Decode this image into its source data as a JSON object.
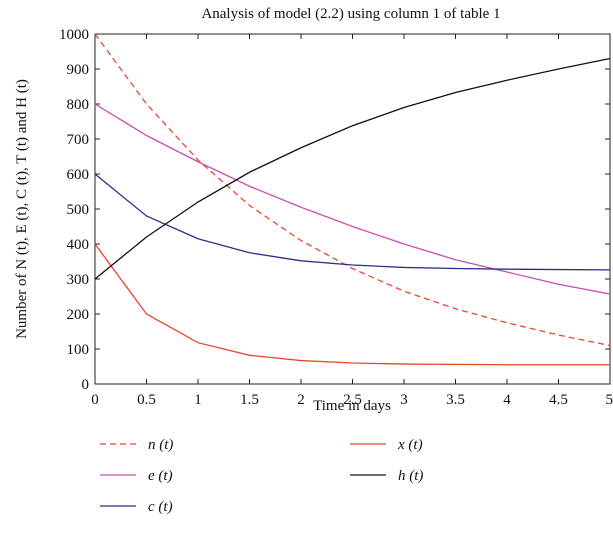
{
  "chart_data": {
    "type": "line",
    "title": "Analysis of model (2.2) using column 1 of table 1",
    "xlabel": "Time in days",
    "ylabel": "Number of N (t), E (t), C (t), T (t) and H (t)",
    "xlim": [
      0,
      5
    ],
    "ylim": [
      0,
      1000
    ],
    "xticks": [
      "0",
      "0.5",
      "1",
      "1.5",
      "2",
      "2.5",
      "3",
      "3.5",
      "4",
      "4.5",
      "5"
    ],
    "yticks": [
      "0",
      "100",
      "200",
      "300",
      "400",
      "500",
      "600",
      "700",
      "800",
      "900",
      "1000"
    ],
    "grid": false,
    "legend_position": "bottom",
    "x": [
      0,
      0.5,
      1,
      1.5,
      2,
      2.5,
      3,
      3.5,
      4,
      4.5,
      5
    ],
    "series": [
      {
        "name": "n (t)",
        "color": "#e8472e",
        "dash": "dashed",
        "values": [
          1000,
          800,
          640,
          510,
          410,
          330,
          265,
          215,
          175,
          140,
          110
        ]
      },
      {
        "name": "e (t)",
        "color": "#c850b4",
        "dash": "solid",
        "values": [
          800,
          710,
          635,
          565,
          505,
          450,
          400,
          355,
          320,
          285,
          257
        ]
      },
      {
        "name": "c (t)",
        "color": "#2b2d8c",
        "dash": "solid",
        "values": [
          600,
          480,
          415,
          375,
          352,
          340,
          333,
          330,
          328,
          327,
          326
        ]
      },
      {
        "name": "x (t)",
        "color": "#e8472e",
        "dash": "solid",
        "values": [
          400,
          200,
          118,
          82,
          67,
          60,
          57,
          56,
          55,
          55,
          55
        ]
      },
      {
        "name": "h (t)",
        "color": "#111111",
        "dash": "solid",
        "values": [
          300,
          420,
          520,
          605,
          675,
          738,
          790,
          833,
          868,
          900,
          930
        ]
      }
    ]
  }
}
